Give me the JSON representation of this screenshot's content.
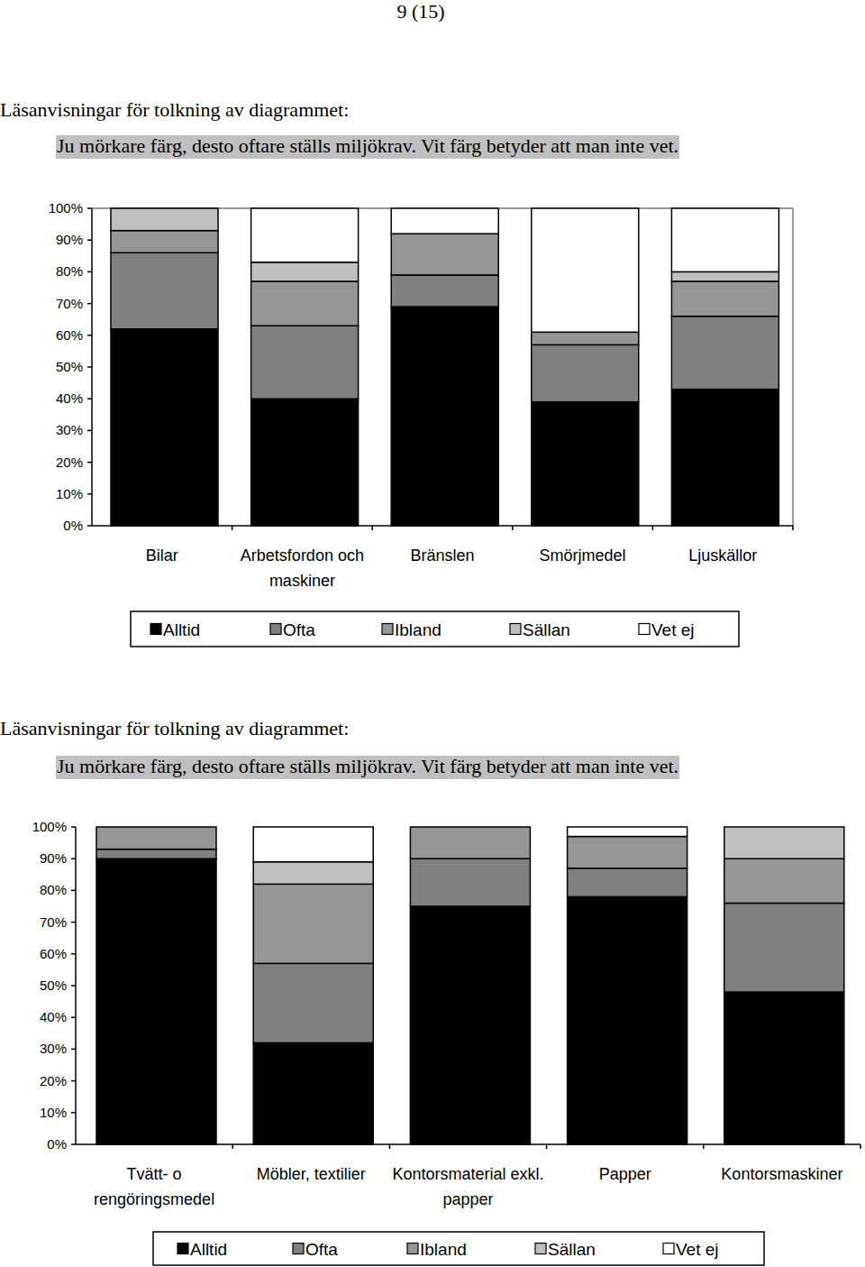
{
  "header": "9 (15)",
  "chart_data": [
    {
      "type": "bar",
      "stacked": true,
      "legend": "bottom",
      "title": "Läsanvisningar för tolkning av diagrammet:",
      "subtitle": "Ju mörkare färg, desto oftare ställs miljökrav. Vit färg betyder att man inte vet.",
      "categories": [
        "Bilar",
        "Arbetsfordon och\nmaskiner",
        "Bränslen",
        "Smörjmedel",
        "Ljuskällor"
      ],
      "series": [
        {
          "name": "Alltid",
          "color": "#000000",
          "values": [
            62,
            40,
            69,
            39,
            43
          ]
        },
        {
          "name": "Ofta",
          "color": "#808080",
          "values": [
            24,
            23,
            10,
            18,
            23
          ]
        },
        {
          "name": "Ibland",
          "color": "#969696",
          "values": [
            7,
            14,
            13,
            4,
            11
          ]
        },
        {
          "name": "Sällan",
          "color": "#c0c0c0",
          "values": [
            7,
            6,
            0,
            0,
            3
          ]
        },
        {
          "name": "Vet ej",
          "color": "#ffffff",
          "values": [
            0,
            17,
            8,
            39,
            20
          ]
        }
      ],
      "ylim": [
        0,
        100
      ],
      "yticks": [
        {
          "value": 0,
          "label": "0%"
        },
        {
          "value": 10,
          "label": "10%"
        },
        {
          "value": 20,
          "label": "20%"
        },
        {
          "value": 30,
          "label": "30%"
        },
        {
          "value": 40,
          "label": "40%"
        },
        {
          "value": 50,
          "label": "50%"
        },
        {
          "value": 60,
          "label": "60%"
        },
        {
          "value": 70,
          "label": "70%"
        },
        {
          "value": 80,
          "label": "80%"
        },
        {
          "value": 90,
          "label": "90%"
        },
        {
          "value": 100,
          "label": "100%"
        }
      ]
    },
    {
      "type": "bar",
      "stacked": true,
      "legend": "bottom",
      "title": "Läsanvisningar för tolkning av diagrammet:",
      "subtitle": "Ju mörkare färg, desto oftare ställs miljökrav. Vit färg betyder att man inte vet.",
      "categories": [
        "Tvätt- o\nrengöringsmedel",
        "Möbler, textilier",
        "Kontorsmaterial exkl.\npapper",
        "Papper",
        "Kontorsmaskiner"
      ],
      "series": [
        {
          "name": "Alltid",
          "color": "#000000",
          "values": [
            90,
            32,
            75,
            78,
            48
          ]
        },
        {
          "name": "Ofta",
          "color": "#808080",
          "values": [
            3,
            25,
            15,
            9,
            28
          ]
        },
        {
          "name": "Ibland",
          "color": "#969696",
          "values": [
            7,
            25,
            10,
            10,
            14
          ]
        },
        {
          "name": "Sällan",
          "color": "#c0c0c0",
          "values": [
            0,
            7,
            0,
            0,
            10
          ]
        },
        {
          "name": "Vet ej",
          "color": "#ffffff",
          "values": [
            0,
            11,
            0,
            3,
            0
          ]
        }
      ],
      "ylim": [
        0,
        100
      ],
      "yticks": [
        {
          "value": 0,
          "label": "0%"
        },
        {
          "value": 10,
          "label": "10%"
        },
        {
          "value": 20,
          "label": "20%"
        },
        {
          "value": 30,
          "label": "30%"
        },
        {
          "value": 40,
          "label": "40%"
        },
        {
          "value": 50,
          "label": "50%"
        },
        {
          "value": 60,
          "label": "60%"
        },
        {
          "value": 70,
          "label": "70%"
        },
        {
          "value": 80,
          "label": "80%"
        },
        {
          "value": 90,
          "label": "90%"
        },
        {
          "value": 100,
          "label": "100%"
        }
      ]
    }
  ]
}
